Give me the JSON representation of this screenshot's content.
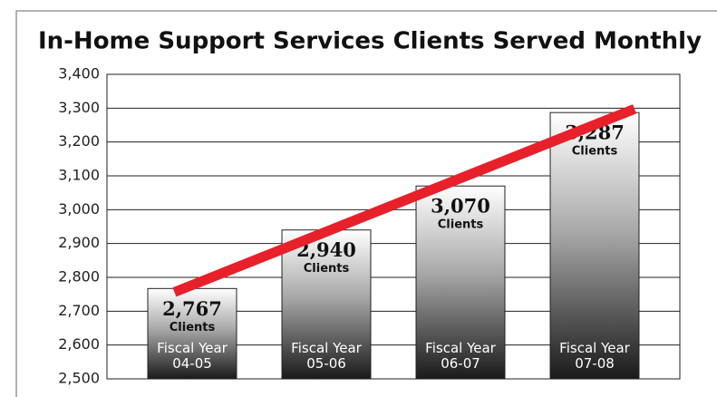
{
  "chart_data": {
    "type": "bar",
    "title": "In-Home Support Services Clients Served Monthly",
    "categories": [
      "Fiscal Year 04-05",
      "Fiscal Year 05-06",
      "Fiscal Year 06-07",
      "Fiscal Year 07-08"
    ],
    "values": [
      2767,
      2940,
      3070,
      3287
    ],
    "value_labels": [
      "2,767",
      "2,940",
      "3,070",
      "3,287"
    ],
    "value_unit": "Clients",
    "trend_color": "#e8202a",
    "ylim": [
      2500,
      3400
    ],
    "yticks": [
      {
        "value": 2500,
        "label": "2,500"
      },
      {
        "value": 2600,
        "label": "2,600"
      },
      {
        "value": 2700,
        "label": "2,700"
      },
      {
        "value": 2800,
        "label": "2,800"
      },
      {
        "value": 2900,
        "label": "2,900"
      },
      {
        "value": 3000,
        "label": "3,000"
      },
      {
        "value": 3100,
        "label": "3,100"
      },
      {
        "value": 3200,
        "label": "3,200"
      },
      {
        "value": 3300,
        "label": "3,300"
      },
      {
        "value": 3400,
        "label": "3,400"
      }
    ],
    "grid": true
  }
}
